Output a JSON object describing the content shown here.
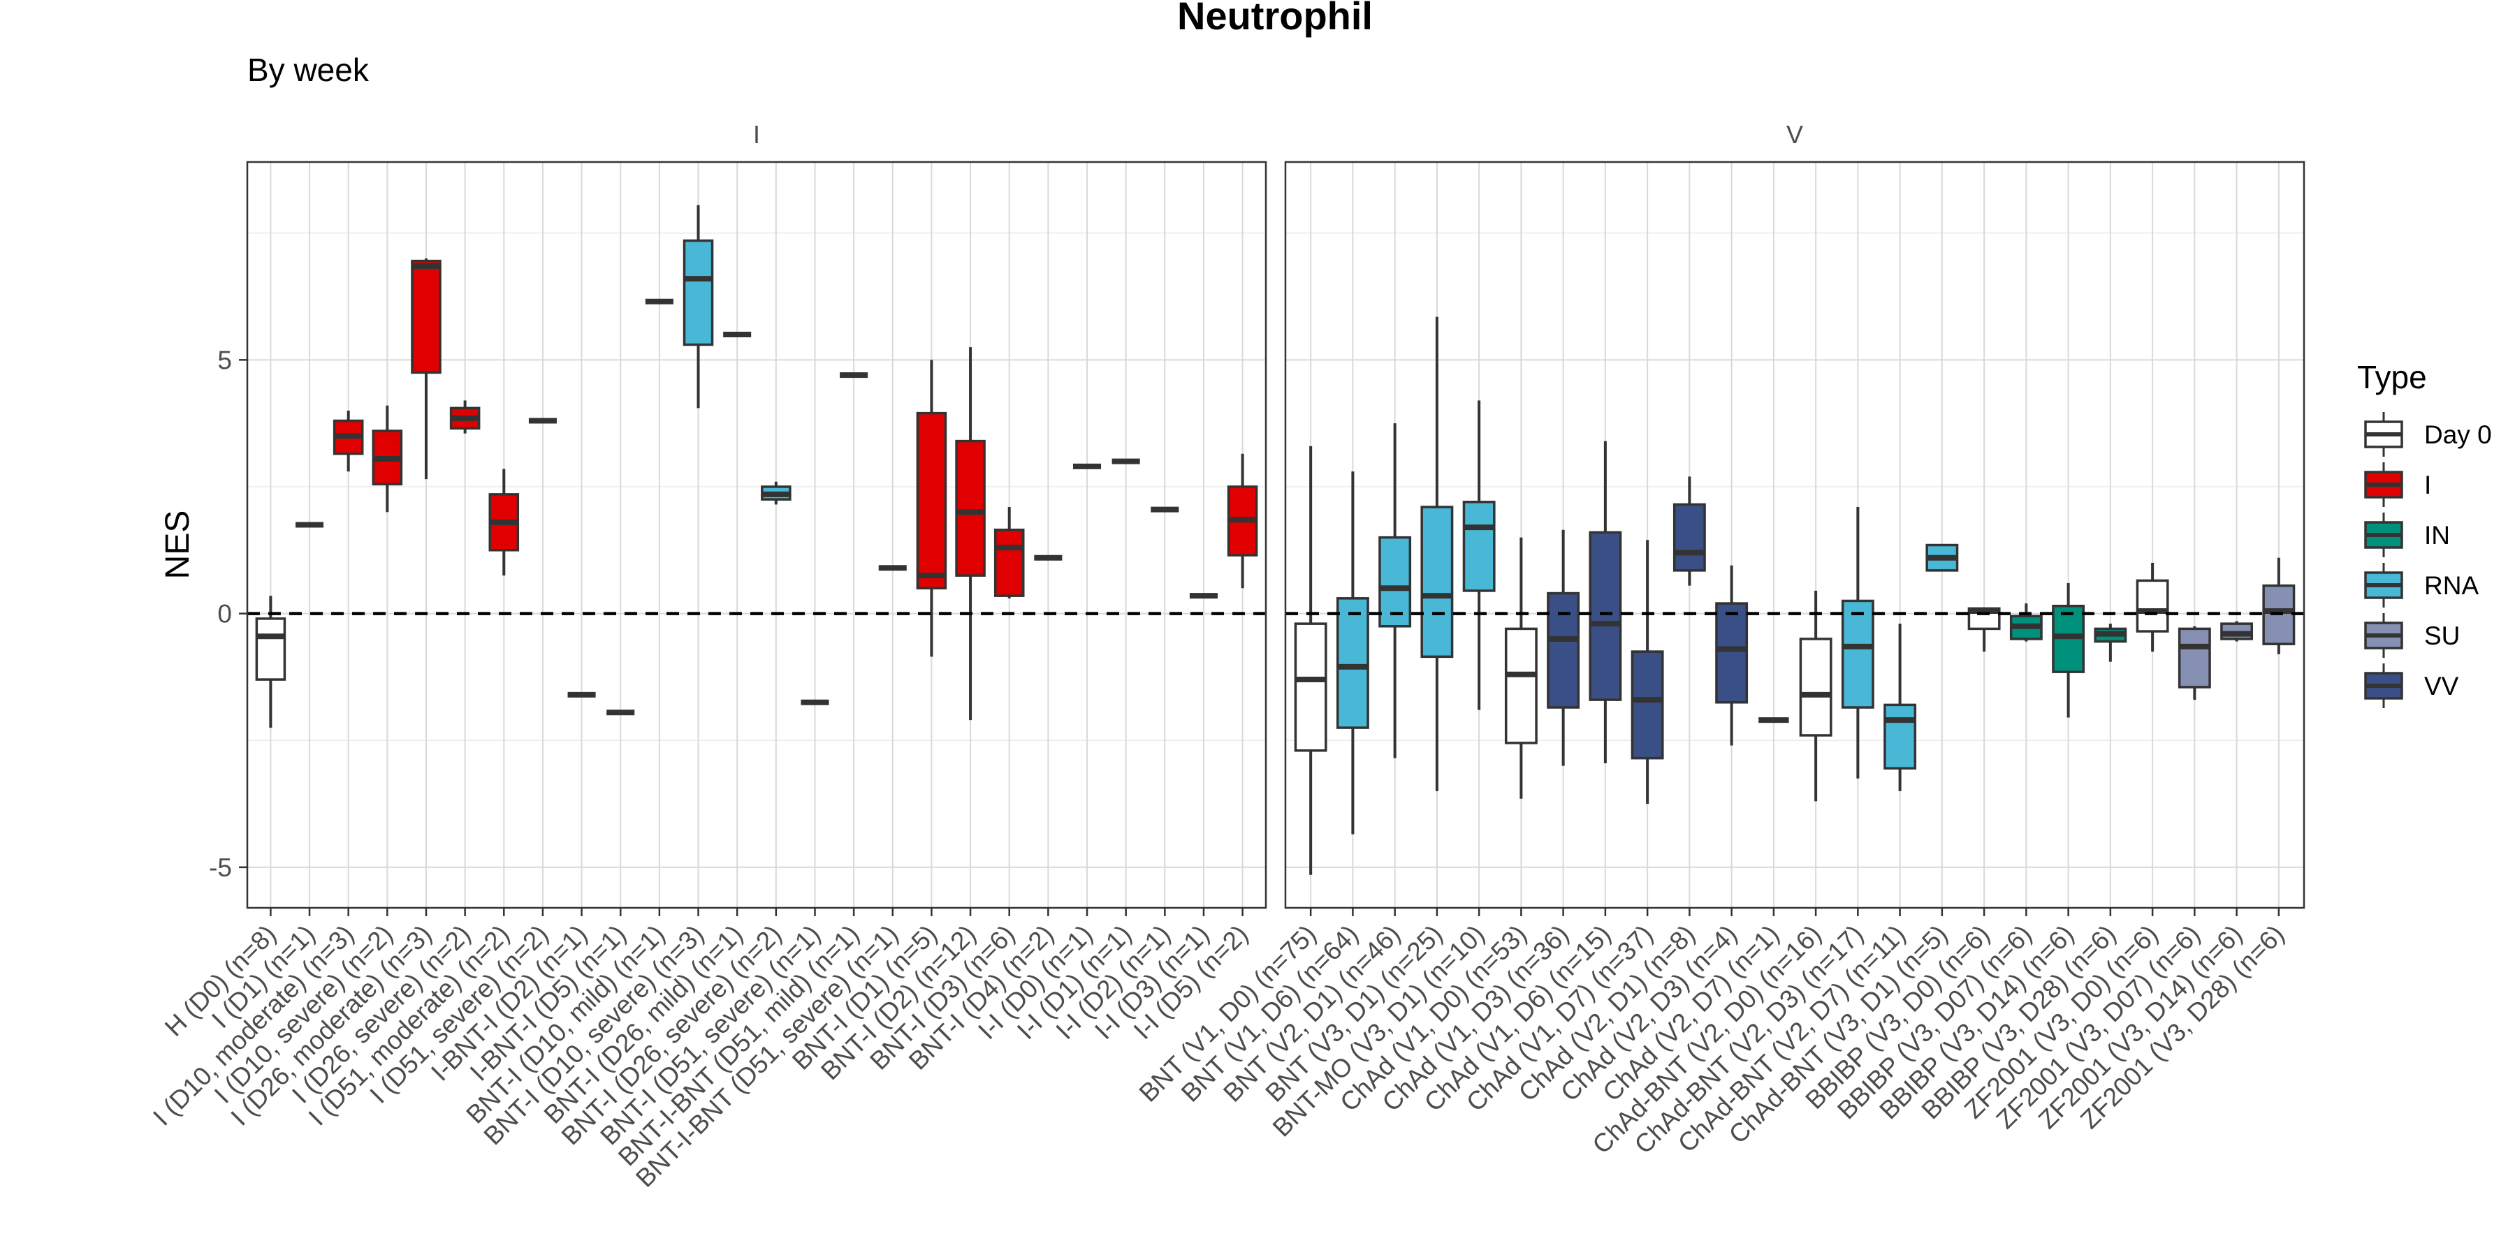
{
  "chart_data": {
    "type": "boxplot",
    "title": "Neutrophil",
    "subtitle": "By week",
    "ylabel": "NES",
    "xlabel": "",
    "ylim": [
      -5.8,
      8.9
    ],
    "yticks": [
      -5,
      0,
      5
    ],
    "ytick_labels": [
      "-5",
      "0",
      "5"
    ],
    "reference_line": 0,
    "grid": true,
    "legend": {
      "title": "Type",
      "position": "right",
      "entries": [
        {
          "name": "Day 0",
          "color": "#ffffff"
        },
        {
          "name": "I",
          "color": "#e00000"
        },
        {
          "name": "IN",
          "color": "#00917d"
        },
        {
          "name": "RNA",
          "color": "#48b8d6"
        },
        {
          "name": "SU",
          "color": "#8590b3"
        },
        {
          "name": "VV",
          "color": "#3a4f86"
        }
      ]
    },
    "facets": [
      {
        "label": "I",
        "categories": [
          {
            "label": "H (D0) (n=8)",
            "type": "Day 0",
            "q1": -1.3,
            "median": -0.45,
            "q3": -0.1,
            "lo": -2.25,
            "hi": 0.35
          },
          {
            "label": "I (D1) (n=1)",
            "type": "I",
            "q1": 1.75,
            "median": 1.75,
            "q3": 1.75,
            "lo": 1.75,
            "hi": 1.75
          },
          {
            "label": "I (D10, moderate) (n=3)",
            "type": "I",
            "q1": 3.15,
            "median": 3.5,
            "q3": 3.8,
            "lo": 2.8,
            "hi": 4.0
          },
          {
            "label": "I (D10, severe) (n=2)",
            "type": "I",
            "q1": 2.55,
            "median": 3.05,
            "q3": 3.6,
            "lo": 2.0,
            "hi": 4.1
          },
          {
            "label": "I (D26, moderate) (n=3)",
            "type": "I",
            "q1": 4.75,
            "median": 6.85,
            "q3": 6.95,
            "lo": 2.65,
            "hi": 7.0
          },
          {
            "label": "I (D26, severe) (n=2)",
            "type": "I",
            "q1": 3.65,
            "median": 3.85,
            "q3": 4.05,
            "lo": 3.55,
            "hi": 4.2
          },
          {
            "label": "I (D51, moderate) (n=2)",
            "type": "I",
            "q1": 1.25,
            "median": 1.8,
            "q3": 2.35,
            "lo": 0.75,
            "hi": 2.85
          },
          {
            "label": "I (D51, severe) (n=2)",
            "type": "I",
            "q1": 3.8,
            "median": 3.8,
            "q3": 3.8,
            "lo": 3.8,
            "hi": 3.8
          },
          {
            "label": "I-BNT-I (D2) (n=1)",
            "type": "I",
            "q1": -1.6,
            "median": -1.6,
            "q3": -1.6,
            "lo": -1.6,
            "hi": -1.6
          },
          {
            "label": "I-BNT-I (D5) (n=1)",
            "type": "I",
            "q1": -1.95,
            "median": -1.95,
            "q3": -1.95,
            "lo": -1.95,
            "hi": -1.95
          },
          {
            "label": "BNT-I (D10, mild) (n=1)",
            "type": "RNA",
            "q1": 6.15,
            "median": 6.15,
            "q3": 6.15,
            "lo": 6.15,
            "hi": 6.15
          },
          {
            "label": "BNT-I (D10, severe) (n=3)",
            "type": "RNA",
            "q1": 5.3,
            "median": 6.6,
            "q3": 7.35,
            "lo": 4.05,
            "hi": 8.05
          },
          {
            "label": "BNT-I (D26, mild) (n=1)",
            "type": "RNA",
            "q1": 5.5,
            "median": 5.5,
            "q3": 5.5,
            "lo": 5.5,
            "hi": 5.5
          },
          {
            "label": "BNT-I (D26, severe) (n=2)",
            "type": "RNA",
            "q1": 2.25,
            "median": 2.35,
            "q3": 2.5,
            "lo": 2.15,
            "hi": 2.6
          },
          {
            "label": "BNT-I (D51, severe) (n=1)",
            "type": "RNA",
            "q1": -1.75,
            "median": -1.75,
            "q3": -1.75,
            "lo": -1.75,
            "hi": -1.75
          },
          {
            "label": "BNT-I-BNT (D51, mild) (n=1)",
            "type": "RNA",
            "q1": 4.7,
            "median": 4.7,
            "q3": 4.7,
            "lo": 4.7,
            "hi": 4.7
          },
          {
            "label": "BNT-I-BNT (D51, severe) (n=1)",
            "type": "RNA",
            "q1": 0.9,
            "median": 0.9,
            "q3": 0.9,
            "lo": 0.9,
            "hi": 0.9
          },
          {
            "label": "BNT-I (D1) (n=5)",
            "type": "I",
            "q1": 0.5,
            "median": 0.75,
            "q3": 3.95,
            "lo": -0.85,
            "hi": 5.0
          },
          {
            "label": "BNT-I (D2) (n=12)",
            "type": "I",
            "q1": 0.75,
            "median": 2.0,
            "q3": 3.4,
            "lo": -2.1,
            "hi": 5.25
          },
          {
            "label": "BNT-I (D3) (n=6)",
            "type": "I",
            "q1": 0.35,
            "median": 1.3,
            "q3": 1.65,
            "lo": 0.3,
            "hi": 2.1
          },
          {
            "label": "BNT-I (D4) (n=2)",
            "type": "I",
            "q1": 1.1,
            "median": 1.1,
            "q3": 1.1,
            "lo": 1.1,
            "hi": 1.1
          },
          {
            "label": "I-I (D0) (n=1)",
            "type": "I",
            "q1": 2.9,
            "median": 2.9,
            "q3": 2.9,
            "lo": 2.9,
            "hi": 2.9
          },
          {
            "label": "I-I (D1) (n=1)",
            "type": "I",
            "q1": 3.0,
            "median": 3.0,
            "q3": 3.0,
            "lo": 3.0,
            "hi": 3.0
          },
          {
            "label": "I-I (D2) (n=1)",
            "type": "I",
            "q1": 2.05,
            "median": 2.05,
            "q3": 2.05,
            "lo": 2.05,
            "hi": 2.05
          },
          {
            "label": "I-I (D3) (n=1)",
            "type": "I",
            "q1": 0.35,
            "median": 0.35,
            "q3": 0.35,
            "lo": 0.35,
            "hi": 0.35
          },
          {
            "label": "I-I (D5) (n=2)",
            "type": "I",
            "q1": 1.15,
            "median": 1.85,
            "q3": 2.5,
            "lo": 0.5,
            "hi": 3.15
          }
        ]
      },
      {
        "label": "V",
        "categories": [
          {
            "label": "BNT (V1, D0) (n=75)",
            "type": "Day 0",
            "q1": -2.7,
            "median": -1.3,
            "q3": -0.2,
            "lo": -5.15,
            "hi": 3.3
          },
          {
            "label": "BNT (V1, D6) (n=64)",
            "type": "RNA",
            "q1": -2.25,
            "median": -1.05,
            "q3": 0.3,
            "lo": -4.35,
            "hi": 2.8
          },
          {
            "label": "BNT (V2, D1) (n=46)",
            "type": "RNA",
            "q1": -0.25,
            "median": 0.5,
            "q3": 1.5,
            "lo": -2.85,
            "hi": 3.75
          },
          {
            "label": "BNT (V3, D1) (n=25)",
            "type": "RNA",
            "q1": -0.85,
            "median": 0.35,
            "q3": 2.1,
            "lo": -3.5,
            "hi": 5.85
          },
          {
            "label": "BNT-MO (V3, D1) (n=10)",
            "type": "RNA",
            "q1": 0.45,
            "median": 1.7,
            "q3": 2.2,
            "lo": -1.9,
            "hi": 4.2
          },
          {
            "label": "ChAd (V1, D0) (n=53)",
            "type": "Day 0",
            "q1": -2.55,
            "median": -1.2,
            "q3": -0.3,
            "lo": -3.65,
            "hi": 1.5
          },
          {
            "label": "ChAd (V1, D3) (n=36)",
            "type": "VV",
            "q1": -1.85,
            "median": -0.5,
            "q3": 0.4,
            "lo": -3.0,
            "hi": 1.65
          },
          {
            "label": "ChAd (V1, D6) (n=15)",
            "type": "VV",
            "q1": -1.7,
            "median": -0.2,
            "q3": 1.6,
            "lo": -2.95,
            "hi": 3.4
          },
          {
            "label": "ChAd (V1, D7) (n=37)",
            "type": "VV",
            "q1": -2.85,
            "median": -1.7,
            "q3": -0.75,
            "lo": -3.75,
            "hi": 1.45
          },
          {
            "label": "ChAd (V2, D1) (n=8)",
            "type": "VV",
            "q1": 0.85,
            "median": 1.2,
            "q3": 2.15,
            "lo": 0.55,
            "hi": 2.7
          },
          {
            "label": "ChAd (V2, D3) (n=4)",
            "type": "VV",
            "q1": -1.75,
            "median": -0.7,
            "q3": 0.2,
            "lo": -2.6,
            "hi": 0.95
          },
          {
            "label": "ChAd (V2, D7) (n=1)",
            "type": "VV",
            "q1": -2.1,
            "median": -2.1,
            "q3": -2.1,
            "lo": -2.1,
            "hi": -2.1
          },
          {
            "label": "ChAd-BNT (V2, D0) (n=16)",
            "type": "Day 0",
            "q1": -2.4,
            "median": -1.6,
            "q3": -0.5,
            "lo": -3.7,
            "hi": 0.45
          },
          {
            "label": "ChAd-BNT (V2, D3) (n=17)",
            "type": "RNA",
            "q1": -1.85,
            "median": -0.65,
            "q3": 0.25,
            "lo": -3.25,
            "hi": 2.1
          },
          {
            "label": "ChAd-BNT (V2, D7) (n=11)",
            "type": "RNA",
            "q1": -3.05,
            "median": -2.1,
            "q3": -1.8,
            "lo": -3.5,
            "hi": -0.2
          },
          {
            "label": "ChAd-BNT (V3, D1) (n=5)",
            "type": "RNA",
            "q1": 0.85,
            "median": 1.1,
            "q3": 1.35,
            "lo": 0.85,
            "hi": 1.35
          },
          {
            "label": "BBIBP (V3, D0) (n=6)",
            "type": "Day 0",
            "q1": -0.3,
            "median": 0.05,
            "q3": 0.1,
            "lo": -0.75,
            "hi": 0.1
          },
          {
            "label": "BBIBP (V3, D07) (n=6)",
            "type": "IN",
            "q1": -0.5,
            "median": -0.25,
            "q3": -0.05,
            "lo": -0.55,
            "hi": 0.2
          },
          {
            "label": "BBIBP (V3, D14) (n=6)",
            "type": "IN",
            "q1": -1.15,
            "median": -0.45,
            "q3": 0.15,
            "lo": -2.05,
            "hi": 0.6
          },
          {
            "label": "BBIBP (V3, D28) (n=6)",
            "type": "IN",
            "q1": -0.55,
            "median": -0.4,
            "q3": -0.3,
            "lo": -0.95,
            "hi": -0.2
          },
          {
            "label": "ZF2001 (V3, D0) (n=6)",
            "type": "Day 0",
            "q1": -0.35,
            "median": 0.05,
            "q3": 0.65,
            "lo": -0.75,
            "hi": 1.0
          },
          {
            "label": "ZF2001 (V3, D07) (n=6)",
            "type": "SU",
            "q1": -1.45,
            "median": -0.65,
            "q3": -0.3,
            "lo": -1.7,
            "hi": -0.25
          },
          {
            "label": "ZF2001 (V3, D14) (n=6)",
            "type": "SU",
            "q1": -0.5,
            "median": -0.4,
            "q3": -0.2,
            "lo": -0.55,
            "hi": -0.15
          },
          {
            "label": "ZF2001 (V3, D28) (n=6)",
            "type": "SU",
            "q1": -0.6,
            "median": 0.05,
            "q3": 0.55,
            "lo": -0.8,
            "hi": 1.1
          }
        ]
      }
    ]
  }
}
